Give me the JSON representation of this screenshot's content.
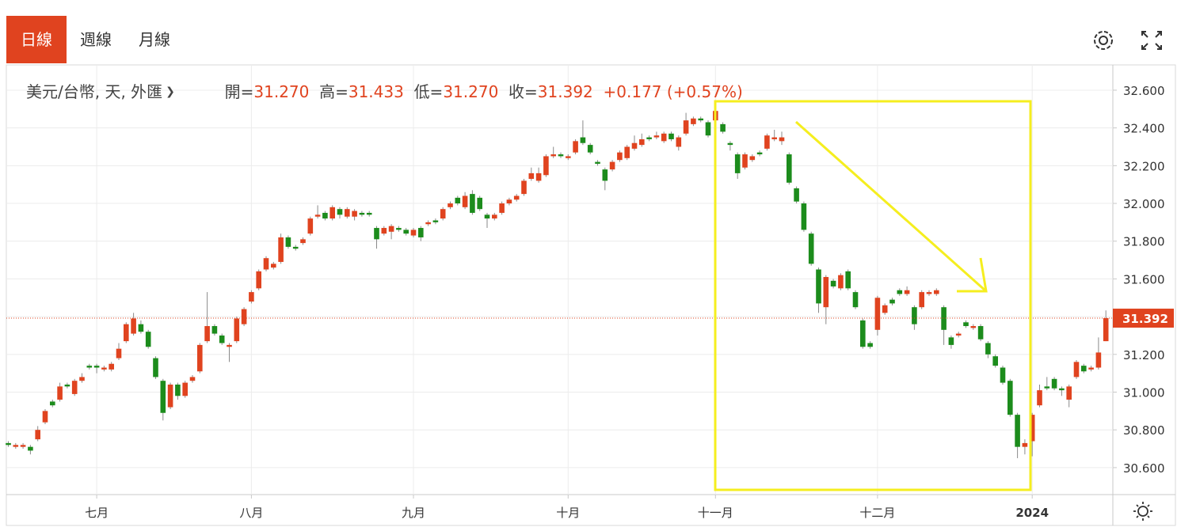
{
  "tabs": [
    "日線",
    "週線",
    "月線"
  ],
  "chart_data": {
    "type": "candlestick",
    "symbol": "美元/台幣, 天, 外匯",
    "ohlc": [
      [
        "開=",
        "31.270"
      ],
      [
        "高=",
        "31.433"
      ],
      [
        "低=",
        "31.270"
      ],
      [
        "收=",
        "31.392"
      ]
    ],
    "change": "+0.177 (+0.57%)",
    "up_color": "#e0431f",
    "down_color": "#1c8c1c",
    "grid": true,
    "ylim": [
      30.457,
      32.734
    ],
    "yticks": [
      {
        "value": 30.6,
        "label": "30.600"
      },
      {
        "value": 30.8,
        "label": "30.800"
      },
      {
        "value": 31.0,
        "label": "31.000"
      },
      {
        "value": 31.2,
        "label": "31.200"
      },
      {
        "value": 31.4,
        "label": "31.400"
      },
      {
        "value": 31.6,
        "label": "31.600"
      },
      {
        "value": 31.8,
        "label": "31.800"
      },
      {
        "value": 32.0,
        "label": "32.000"
      },
      {
        "value": 32.2,
        "label": "32.200"
      },
      {
        "value": 32.4,
        "label": "32.400"
      },
      {
        "value": 32.6,
        "label": "32.600"
      }
    ],
    "last_price": 31.392,
    "categories": [
      null,
      null,
      null,
      null,
      null,
      null,
      null,
      null,
      null,
      null,
      null,
      null,
      "七月",
      null,
      null,
      null,
      null,
      null,
      null,
      null,
      null,
      null,
      null,
      null,
      null,
      null,
      null,
      null,
      null,
      null,
      null,
      null,
      null,
      "八月",
      null,
      null,
      null,
      null,
      null,
      null,
      null,
      null,
      null,
      null,
      null,
      null,
      null,
      null,
      null,
      null,
      null,
      null,
      null,
      null,
      null,
      "九月",
      null,
      null,
      null,
      null,
      null,
      null,
      null,
      null,
      null,
      null,
      null,
      null,
      null,
      null,
      null,
      null,
      null,
      null,
      null,
      null,
      "十月",
      null,
      null,
      null,
      null,
      null,
      null,
      null,
      null,
      null,
      null,
      null,
      null,
      null,
      null,
      null,
      null,
      null,
      null,
      null,
      "十一月",
      null,
      null,
      null,
      null,
      null,
      null,
      null,
      null,
      null,
      null,
      null,
      null,
      null,
      null,
      null,
      null,
      null,
      null,
      null,
      null,
      null,
      "十二月",
      null,
      null,
      null,
      null,
      null,
      null,
      null,
      null,
      null,
      null,
      null,
      null,
      null,
      null,
      null,
      null,
      null,
      null,
      null,
      null,
      "2024",
      null,
      null,
      null,
      null,
      null,
      null,
      null,
      null,
      null,
      null
    ],
    "open": [
      30.73,
      30.71,
      30.71,
      30.71,
      30.75,
      30.84,
      30.95,
      30.96,
      31.04,
      30.99,
      31.06,
      31.14,
      31.14,
      31.12,
      31.12,
      31.18,
      31.27,
      31.31,
      31.36,
      31.32,
      31.18,
      31.06,
      30.92,
      31.04,
      30.98,
      31.06,
      31.11,
      31.27,
      31.35,
      31.3,
      31.24,
      31.27,
      31.36,
      31.48,
      31.55,
      31.65,
      31.66,
      31.69,
      31.82,
      31.77,
      31.79,
      31.84,
      31.93,
      31.95,
      31.92,
      31.97,
      31.93,
      31.93,
      31.95,
      31.95,
      31.87,
      31.84,
      31.85,
      31.87,
      31.86,
      31.83,
      31.87,
      31.89,
      31.91,
      31.92,
      31.98,
      32.03,
      31.98,
      32.05,
      32.03,
      31.94,
      31.92,
      31.95,
      32.0,
      32.02,
      32.05,
      32.13,
      32.12,
      32.15,
      32.25,
      32.26,
      32.24,
      32.27,
      32.35,
      32.31,
      32.22,
      32.18,
      32.18,
      32.23,
      32.24,
      32.29,
      32.31,
      32.35,
      32.35,
      32.33,
      32.37,
      32.3,
      32.37,
      32.42,
      32.45,
      32.43,
      32.44,
      32.42,
      32.32,
      32.26,
      32.19,
      32.23,
      32.27,
      32.29,
      32.34,
      32.33,
      32.26,
      32.08,
      32.0,
      31.84,
      31.65,
      31.45,
      31.59,
      31.55,
      31.64,
      31.53,
      31.38,
      31.26,
      31.33,
      31.42,
      31.49,
      31.54,
      31.52,
      31.45,
      31.45,
      31.52,
      31.52,
      31.45,
      31.29,
      31.3,
      31.37,
      31.34,
      31.35,
      31.26,
      31.19,
      31.13,
      31.06,
      30.88,
      30.71,
      30.74,
      30.93,
      31.03,
      31.07,
      31.02,
      30.96,
      31.08,
      31.14,
      31.12,
      31.13,
      31.27
    ],
    "high": [
      30.74,
      30.73,
      30.73,
      30.72,
      30.82,
      30.91,
      30.96,
      31.05,
      31.05,
      31.07,
      31.1,
      31.15,
      31.15,
      31.14,
      31.16,
      31.26,
      31.37,
      31.42,
      31.38,
      31.33,
      31.19,
      31.07,
      31.05,
      31.05,
      31.06,
      31.09,
      31.26,
      31.53,
      31.36,
      31.31,
      31.26,
      31.4,
      31.45,
      31.54,
      31.65,
      31.72,
      31.69,
      31.84,
      31.83,
      31.78,
      31.82,
      31.93,
      31.99,
      31.96,
      31.99,
      31.98,
      31.98,
      31.97,
      31.96,
      31.96,
      31.88,
      31.88,
      31.89,
      31.88,
      31.87,
      31.87,
      31.88,
      31.91,
      31.92,
      31.98,
      32.01,
      32.04,
      32.06,
      32.07,
      32.04,
      31.95,
      31.95,
      32.01,
      32.03,
      32.05,
      32.13,
      32.19,
      32.19,
      32.26,
      32.3,
      32.27,
      32.26,
      32.34,
      32.44,
      32.32,
      32.23,
      32.19,
      32.23,
      32.28,
      32.31,
      32.36,
      32.37,
      32.36,
      32.38,
      32.38,
      32.38,
      32.36,
      32.48,
      32.46,
      32.46,
      32.44,
      32.5,
      32.43,
      32.33,
      32.27,
      32.27,
      32.26,
      32.28,
      32.37,
      32.39,
      32.38,
      32.27,
      32.09,
      32.01,
      31.85,
      31.66,
      31.62,
      31.6,
      31.63,
      31.65,
      31.54,
      31.39,
      31.27,
      31.51,
      31.47,
      31.5,
      31.55,
      31.56,
      31.46,
      31.54,
      31.54,
      31.55,
      31.46,
      31.3,
      31.32,
      31.38,
      31.36,
      31.36,
      31.27,
      31.2,
      31.14,
      31.07,
      30.89,
      30.75,
      30.89,
      31.04,
      31.08,
      31.08,
      31.03,
      31.04,
      31.17,
      31.15,
      31.14,
      31.29,
      31.433
    ],
    "low": [
      30.71,
      30.7,
      30.7,
      30.67,
      30.74,
      30.83,
      30.92,
      30.95,
      31.02,
      30.98,
      31.05,
      31.12,
      31.1,
      31.11,
      31.11,
      31.17,
      31.26,
      31.3,
      31.31,
      31.23,
      31.07,
      30.85,
      30.91,
      30.96,
      30.97,
      31.05,
      31.1,
      31.26,
      31.3,
      31.25,
      31.16,
      31.26,
      31.35,
      31.47,
      31.54,
      31.64,
      31.65,
      31.68,
      31.76,
      31.75,
      31.78,
      31.83,
      31.92,
      31.91,
      31.91,
      31.92,
      31.92,
      31.91,
      31.93,
      31.93,
      31.76,
      31.83,
      31.81,
      31.85,
      31.83,
      31.82,
      31.8,
      31.88,
      31.89,
      31.91,
      31.97,
      31.99,
      31.97,
      31.94,
      31.96,
      31.87,
      31.91,
      31.94,
      31.99,
      32.01,
      32.04,
      32.12,
      32.11,
      32.14,
      32.24,
      32.24,
      32.23,
      32.26,
      32.31,
      32.26,
      32.2,
      32.07,
      32.17,
      32.22,
      32.23,
      32.28,
      32.3,
      32.33,
      32.34,
      32.32,
      32.33,
      32.28,
      32.36,
      32.41,
      32.43,
      32.35,
      32.43,
      32.37,
      32.28,
      32.13,
      32.18,
      32.22,
      32.25,
      32.28,
      32.33,
      32.31,
      32.1,
      32.0,
      31.85,
      31.67,
      31.42,
      31.36,
      31.55,
      31.54,
      31.54,
      31.44,
      31.23,
      31.23,
      31.3,
      31.41,
      31.46,
      31.51,
      31.51,
      31.33,
      31.44,
      31.51,
      31.51,
      31.25,
      31.23,
      31.29,
      31.34,
      31.33,
      31.27,
      31.18,
      31.13,
      31.04,
      30.87,
      30.65,
      30.67,
      30.66,
      30.92,
      31.01,
      31.01,
      30.98,
      30.92,
      31.07,
      31.1,
      31.11,
      31.12,
      31.27
    ],
    "close": [
      30.72,
      30.72,
      30.72,
      30.69,
      30.8,
      30.9,
      30.93,
      31.03,
      31.03,
      31.06,
      31.08,
      31.13,
      31.13,
      31.13,
      31.15,
      31.23,
      31.36,
      31.39,
      31.32,
      31.24,
      31.08,
      30.89,
      31.04,
      30.98,
      31.05,
      31.08,
      31.25,
      31.35,
      31.31,
      31.26,
      31.25,
      31.39,
      31.44,
      31.53,
      31.64,
      31.71,
      31.68,
      31.82,
      31.77,
      31.76,
      31.81,
      31.92,
      31.94,
      31.92,
      31.98,
      31.94,
      31.97,
      31.96,
      31.94,
      31.94,
      31.81,
      31.87,
      31.88,
      31.86,
      31.84,
      31.86,
      31.82,
      31.9,
      31.9,
      31.97,
      32.0,
      32.0,
      32.04,
      31.95,
      31.97,
      31.92,
      31.94,
      32.0,
      32.02,
      32.04,
      32.12,
      32.16,
      32.16,
      32.25,
      32.26,
      32.25,
      32.25,
      32.33,
      32.32,
      32.27,
      32.21,
      32.12,
      32.22,
      32.27,
      32.3,
      32.32,
      32.34,
      32.34,
      32.36,
      32.37,
      32.34,
      32.35,
      32.44,
      32.45,
      32.44,
      32.36,
      32.49,
      32.38,
      32.31,
      32.16,
      32.26,
      32.25,
      32.26,
      32.36,
      32.35,
      32.35,
      32.11,
      32.01,
      31.86,
      31.68,
      31.47,
      31.61,
      31.56,
      31.62,
      31.55,
      31.45,
      31.24,
      31.24,
      31.5,
      31.46,
      31.47,
      31.52,
      31.54,
      31.36,
      31.53,
      31.53,
      31.54,
      31.33,
      31.25,
      31.31,
      31.35,
      31.35,
      31.28,
      31.2,
      31.14,
      31.05,
      30.88,
      30.71,
      30.73,
      30.88,
      31.01,
      31.02,
      31.02,
      31.01,
      31.03,
      31.16,
      31.11,
      31.13,
      31.21,
      31.392
    ]
  }
}
